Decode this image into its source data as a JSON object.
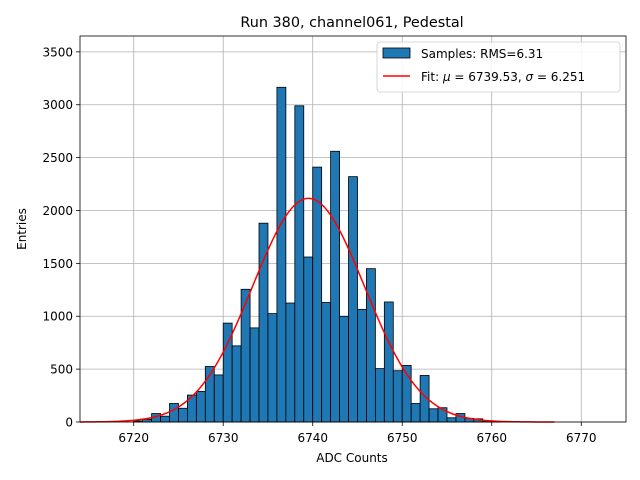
{
  "chart_data": {
    "type": "bar",
    "title": "Run 380, channel061, Pedestal",
    "xlabel": "ADC Counts",
    "ylabel": "Entries",
    "xlim": [
      6714,
      6775
    ],
    "ylim": [
      0,
      3650
    ],
    "xticks": [
      6720,
      6730,
      6740,
      6750,
      6760,
      6770
    ],
    "yticks": [
      0,
      500,
      1000,
      1500,
      2000,
      2500,
      3000,
      3500
    ],
    "grid": true,
    "legend_position": "top-right",
    "legend": {
      "samples_label": "Samples: RMS=6.31",
      "fit_label_prefix": "Fit: ",
      "fit_mu_symbol": "μ",
      "fit_mu_text": " = 6739.53, ",
      "fit_sigma_symbol": "σ",
      "fit_sigma_text": " = 6.251"
    },
    "bins": {
      "start": 6720,
      "width": 1,
      "counts": [
        10,
        25,
        80,
        55,
        175,
        130,
        255,
        290,
        525,
        445,
        935,
        720,
        1255,
        890,
        1880,
        1025,
        3165,
        1125,
        2990,
        1560,
        2410,
        1130,
        2560,
        1000,
        2320,
        1065,
        1450,
        505,
        1135,
        485,
        535,
        175,
        440,
        125,
        135,
        40,
        80,
        35,
        30,
        10,
        5
      ]
    },
    "fit": {
      "type": "gaussian",
      "mu": 6739.53,
      "sigma": 6.251,
      "amplitude": 2115,
      "x_range": [
        6714,
        6767
      ]
    },
    "colors": {
      "bars": "#1f77b4",
      "bar_edge": "#000000",
      "fit": "#ff0000",
      "grid": "#b0b0b0"
    }
  }
}
